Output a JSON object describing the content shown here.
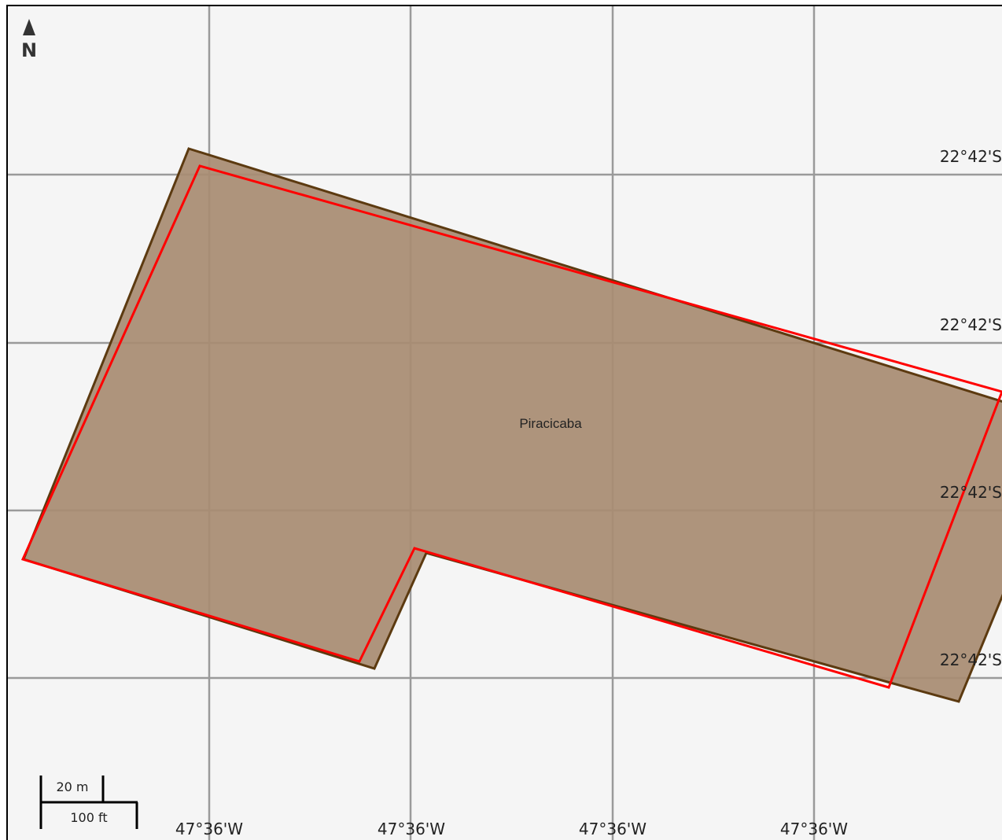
{
  "map": {
    "north_arrow_label": "N",
    "place_label": "Piracicaba",
    "longitude_labels": [
      "47°36'W",
      "47°36'W",
      "47°36'W",
      "47°36'W"
    ],
    "latitude_labels": [
      "22°42'S",
      "22°42'S",
      "22°42'S",
      "22°42'S"
    ],
    "scale_bar": {
      "metric_label": "20 m",
      "imperial_label": "100 ft"
    },
    "colors": {
      "background": "#f5f5f5",
      "grid": "#9a9a9a",
      "parcel_fill": "#a88c72",
      "parcel_outline": "#5c3a10",
      "overlay_outline": "#ff0000"
    },
    "features": [
      {
        "name": "parcel",
        "type": "filled polygon"
      },
      {
        "name": "overlay",
        "type": "outline polygon"
      }
    ]
  }
}
